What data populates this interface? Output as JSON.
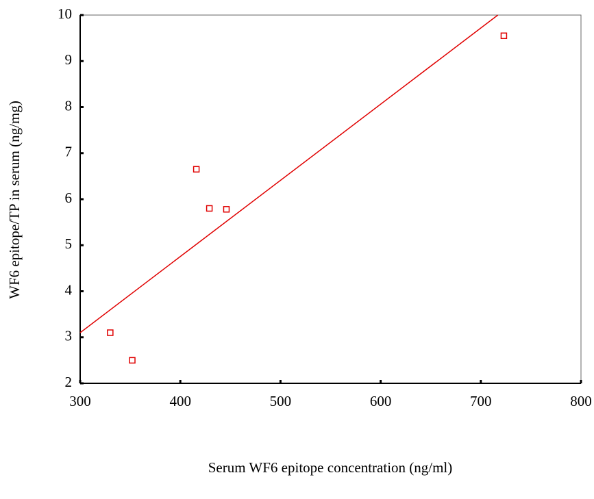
{
  "chart_data": {
    "type": "scatter",
    "x_label": "Serum WF6 epitope concentration (ng/ml)",
    "y_label": "WF6 epitope/TP in serum (ng/mg)",
    "x": [
      330,
      352,
      416,
      429,
      446,
      723
    ],
    "values": [
      3.1,
      2.5,
      6.65,
      5.8,
      5.78,
      9.55
    ],
    "color": "#e00000",
    "fit_line": {
      "x": [
        300,
        717
      ],
      "y": [
        3.1,
        10
      ],
      "color": "#e00000"
    },
    "xlim": [
      300,
      800
    ],
    "xticks": [
      300,
      400,
      500,
      600,
      700,
      800
    ],
    "ylim": [
      2,
      10
    ],
    "yticks": [
      2,
      3,
      4,
      5,
      6,
      7,
      8,
      9,
      10
    ]
  }
}
